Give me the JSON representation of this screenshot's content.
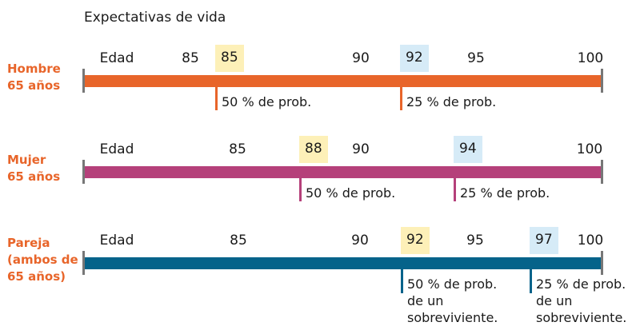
{
  "title": "Expectativas de vida",
  "colors": {
    "hombre": "#e8652a",
    "mujer": "#b5407a",
    "pareja": "#05638a",
    "p50": "#fdf0b8",
    "p25": "#d6ebf7",
    "label": "#e8652a"
  },
  "rows": [
    {
      "label_lines": [
        "Hombre",
        "65 años"
      ],
      "axis_label": "Edad",
      "ticks": [
        "85",
        "90",
        "95",
        "100"
      ],
      "p50": {
        "age": "85",
        "text": [
          "50 % de prob."
        ]
      },
      "p25": {
        "age": "92",
        "text": [
          "25 % de prob."
        ]
      }
    },
    {
      "label_lines": [
        "Mujer",
        "65 años"
      ],
      "axis_label": "Edad",
      "ticks": [
        "85",
        "90",
        "100"
      ],
      "p50": {
        "age": "88",
        "text": [
          "50 % de prob."
        ]
      },
      "p25": {
        "age": "94",
        "text": [
          "25 % de prob."
        ]
      }
    },
    {
      "label_lines": [
        "Pareja",
        "(ambos de",
        "65 años)"
      ],
      "axis_label": "Edad",
      "ticks": [
        "85",
        "90",
        "95",
        "100"
      ],
      "p50": {
        "age": "92",
        "text": [
          "50 % de prob.",
          "de un",
          "sobreviviente."
        ]
      },
      "p25": {
        "age": "97",
        "text": [
          "25 % de prob.",
          "de un",
          "sobreviviente."
        ]
      }
    }
  ]
}
